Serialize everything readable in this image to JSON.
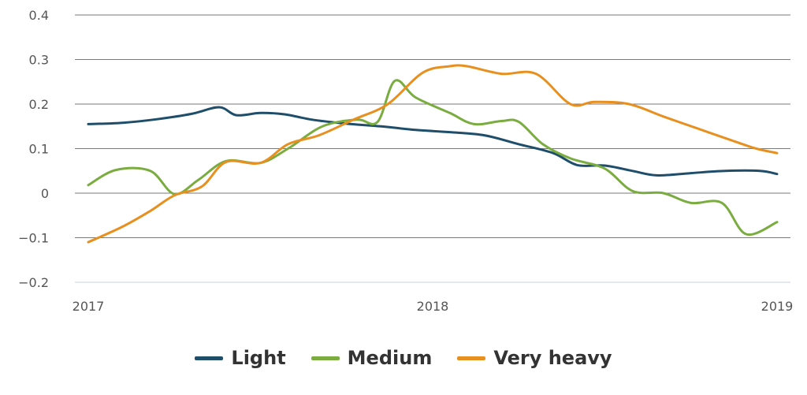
{
  "chart_data": {
    "type": "line",
    "ylim": [
      -0.2,
      0.4
    ],
    "xlim": [
      2017.0,
      2019.0
    ],
    "yticks": [
      0.4,
      0.3,
      0.2,
      0.1,
      0,
      -0.1,
      -0.2
    ],
    "ytick_labels": [
      "0.4",
      "0.3",
      "0.2",
      "0.1",
      "0",
      "−0.1",
      "−0.2"
    ],
    "xticks": [
      2017,
      2018,
      2019
    ],
    "xtick_labels": [
      "2017",
      "2018",
      "2019"
    ],
    "grid": true,
    "legend_position": "bottom-center",
    "series": [
      {
        "name": "Light",
        "color": "#1f4e6b",
        "x": [
          2017.0,
          2017.1,
          2017.2,
          2017.3,
          2017.38,
          2017.43,
          2017.5,
          2017.57,
          2017.65,
          2017.75,
          2017.85,
          2017.95,
          2018.05,
          2018.15,
          2018.25,
          2018.35,
          2018.42,
          2018.5,
          2018.58,
          2018.65,
          2018.75,
          2018.85,
          2018.95,
          2019.0
        ],
        "y": [
          0.155,
          0.158,
          0.166,
          0.178,
          0.193,
          0.175,
          0.18,
          0.177,
          0.165,
          0.156,
          0.15,
          0.142,
          0.137,
          0.13,
          0.11,
          0.09,
          0.063,
          0.062,
          0.05,
          0.04,
          0.045,
          0.05,
          0.05,
          0.043
        ]
      },
      {
        "name": "Medium",
        "color": "#7aac3f",
        "x": [
          2017.0,
          2017.08,
          2017.18,
          2017.25,
          2017.32,
          2017.4,
          2017.5,
          2017.58,
          2017.68,
          2017.78,
          2017.84,
          2017.89,
          2017.95,
          2018.05,
          2018.12,
          2018.2,
          2018.25,
          2018.32,
          2018.4,
          2018.5,
          2018.58,
          2018.67,
          2018.75,
          2018.84,
          2018.91,
          2019.0
        ],
        "y": [
          0.018,
          0.052,
          0.05,
          -0.002,
          0.03,
          0.072,
          0.068,
          0.1,
          0.15,
          0.165,
          0.16,
          0.252,
          0.215,
          0.18,
          0.155,
          0.162,
          0.16,
          0.11,
          0.078,
          0.055,
          0.005,
          0.0,
          -0.022,
          -0.022,
          -0.092,
          -0.065
        ]
      },
      {
        "name": "Very heavy",
        "color": "#e8901f",
        "x": [
          2017.0,
          2017.1,
          2017.18,
          2017.25,
          2017.33,
          2017.4,
          2017.5,
          2017.58,
          2017.67,
          2017.77,
          2017.87,
          2017.97,
          2018.05,
          2018.1,
          2018.2,
          2018.3,
          2018.4,
          2018.47,
          2018.57,
          2018.67,
          2018.77,
          2018.87,
          2018.94,
          2019.0
        ],
        "y": [
          -0.11,
          -0.075,
          -0.04,
          -0.005,
          0.015,
          0.07,
          0.068,
          0.11,
          0.13,
          0.165,
          0.2,
          0.27,
          0.285,
          0.285,
          0.268,
          0.268,
          0.2,
          0.205,
          0.2,
          0.172,
          0.145,
          0.118,
          0.1,
          0.09
        ]
      }
    ]
  }
}
